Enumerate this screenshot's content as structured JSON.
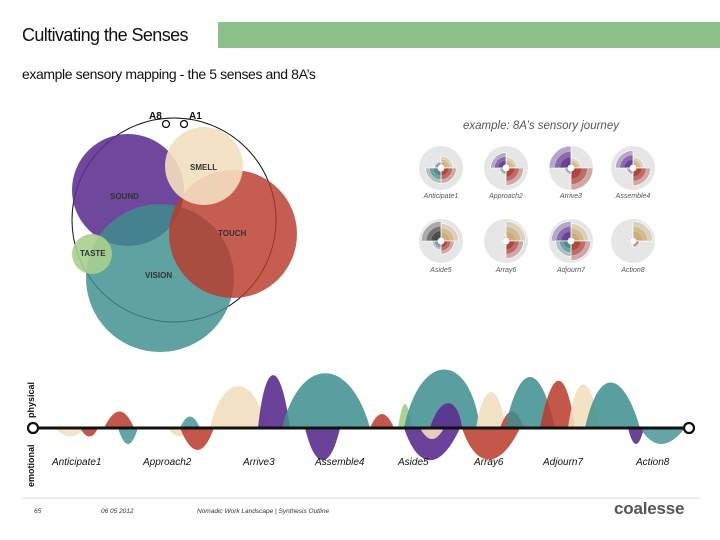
{
  "header": {
    "title": "Cultivating the Senses",
    "subtitle": "example sensory mapping - the 5 senses and 8A’s",
    "accent_color": "#8cbf8a"
  },
  "venn": {
    "a8_label": "A8",
    "a1_label": "A1",
    "senses": [
      {
        "name": "SOUND",
        "color": "#5b2d8e"
      },
      {
        "name": "SMELL",
        "color": "#f3dfc0"
      },
      {
        "name": "TOUCH",
        "color": "#b83a2a"
      },
      {
        "name": "TASTE",
        "color": "#a8d08d"
      },
      {
        "name": "VISION",
        "color": "#3d8e8e"
      }
    ]
  },
  "journey": {
    "title": "example: 8A’s sensory journey",
    "stages": [
      {
        "label": "Anticipate1",
        "levels": {
          "smell": 0.55,
          "touch": 0.7,
          "sound": 0.3,
          "vision": 0.7,
          "taste": 0
        }
      },
      {
        "label": "Approach2",
        "levels": {
          "smell": 0.5,
          "touch": 0.8,
          "sound": 0.7,
          "vision": 0.3,
          "taste": 0
        }
      },
      {
        "label": "Arrive3",
        "levels": {
          "smell": 0.45,
          "touch": 1.0,
          "sound": 1.0,
          "vision": 0.3,
          "taste": 0
        }
      },
      {
        "label": "Assemble4",
        "levels": {
          "smell": 0.5,
          "touch": 0.8,
          "sound": 0.8,
          "vision": 0.3,
          "taste": 0
        }
      },
      {
        "label": "Aside5",
        "levels": {
          "smell": 0.8,
          "touch": 0.6,
          "sound": 0.3,
          "vision": 0.4,
          "taste": 0,
          "dark": 0.9
        }
      },
      {
        "label": "Array6",
        "levels": {
          "smell": 0.9,
          "touch": 0.8,
          "sound": 0.2,
          "vision": 0.2,
          "taste": 0
        }
      },
      {
        "label": "Adjourn7",
        "levels": {
          "smell": 0.8,
          "touch": 0.9,
          "sound": 0.9,
          "vision": 0.7,
          "taste": 0
        }
      },
      {
        "label": "Action8",
        "levels": {
          "smell": 0.9,
          "touch": 0.3,
          "sound": 0.2,
          "vision": 0.2,
          "taste": 0
        }
      }
    ]
  },
  "timeline": {
    "physical_label": "physical",
    "emotional_label": "emotional",
    "stages": [
      "Anticipate1",
      "Approach2",
      "Arrive3",
      "Assemble4",
      "Aside5",
      "Array6",
      "Adjourn7",
      "Action8"
    ]
  },
  "footer": {
    "page": "65",
    "date": "06 05 2012",
    "doc": "Nomadic Work Landscape  |  Synthesis Outline",
    "brand": "coalesse"
  }
}
